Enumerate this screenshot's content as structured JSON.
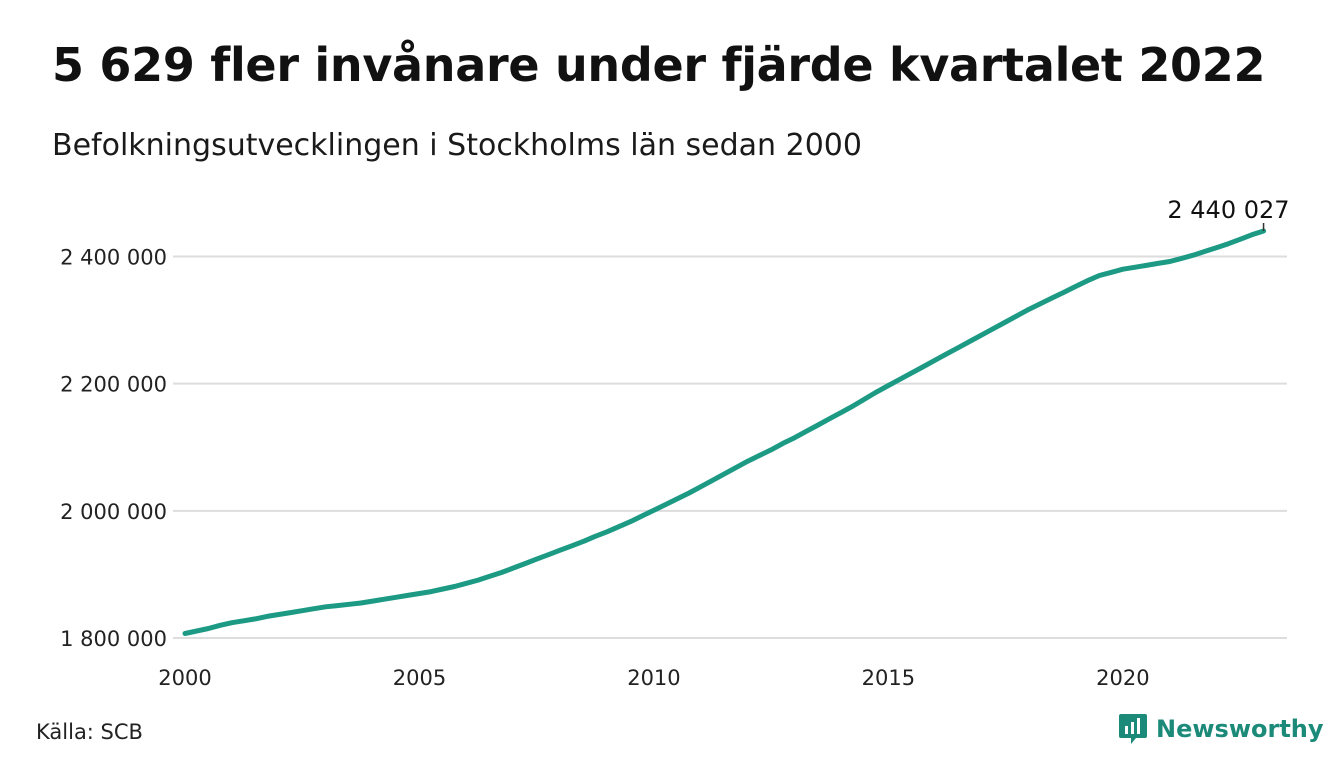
{
  "title": "5 629 fler invånare under fjärde kvartalet 2022",
  "subtitle": "Befolkningsutvecklingen i Stockholms län sedan 2000",
  "source": "Källa: SCB",
  "brand": {
    "name": "Newsworthy",
    "icon": "newsworthy-logo-icon"
  },
  "colors": {
    "line": "#1c9a84",
    "grid": "#dddddd",
    "brand": "#1c8a79"
  },
  "chart_data": {
    "type": "line",
    "title": "5 629 fler invånare under fjärde kvartalet 2022",
    "subtitle": "Befolkningsutvecklingen i Stockholms län sedan 2000",
    "xlabel": "",
    "ylabel": "",
    "xlim": [
      2000,
      2023.5
    ],
    "ylim": [
      1800000,
      2440027
    ],
    "grid": "horizontal",
    "legend": "none",
    "x_ticks": [
      2000,
      2005,
      2010,
      2015,
      2020
    ],
    "x_tick_labels": [
      "2000",
      "2005",
      "2010",
      "2015",
      "2020"
    ],
    "y_ticks": [
      1800000,
      2000000,
      2200000,
      2400000
    ],
    "y_tick_labels": [
      "1 800 000",
      "2 000 000",
      "2 200 000",
      "2 400 000"
    ],
    "end_label": "2 440 027",
    "series": [
      {
        "x": [
          2000.0,
          2000.25,
          2000.5,
          2000.75,
          2001.0,
          2001.25,
          2001.5,
          2001.75,
          2002.0,
          2002.25,
          2002.5,
          2002.75,
          2003.0,
          2003.25,
          2003.5,
          2003.75,
          2004.0,
          2004.25,
          2004.5,
          2004.75,
          2005.0,
          2005.25,
          2005.5,
          2005.75,
          2006.0,
          2006.25,
          2006.5,
          2006.75,
          2007.0,
          2007.25,
          2007.5,
          2007.75,
          2008.0,
          2008.25,
          2008.5,
          2008.75,
          2009.0,
          2009.25,
          2009.5,
          2009.75,
          2010.0,
          2010.25,
          2010.5,
          2010.75,
          2011.0,
          2011.25,
          2011.5,
          2011.75,
          2012.0,
          2012.25,
          2012.5,
          2012.75,
          2013.0,
          2013.25,
          2013.5,
          2013.75,
          2014.0,
          2014.25,
          2014.5,
          2014.75,
          2015.0,
          2015.25,
          2015.5,
          2015.75,
          2016.0,
          2016.25,
          2016.5,
          2016.75,
          2017.0,
          2017.25,
          2017.5,
          2017.75,
          2018.0,
          2018.25,
          2018.5,
          2018.75,
          2019.0,
          2019.25,
          2019.5,
          2019.75,
          2020.0,
          2020.25,
          2020.5,
          2020.75,
          2021.0,
          2021.25,
          2021.5,
          2021.75,
          2022.0,
          2022.25,
          2022.5,
          2022.75,
          2023.0
        ],
        "y": [
          1807000,
          1811000,
          1815000,
          1820000,
          1824000,
          1827000,
          1830000,
          1834000,
          1837000,
          1840000,
          1843000,
          1846000,
          1849000,
          1851000,
          1853000,
          1855000,
          1858000,
          1861000,
          1864000,
          1867000,
          1870000,
          1873000,
          1877000,
          1881000,
          1886000,
          1891000,
          1897000,
          1903000,
          1910000,
          1917000,
          1924000,
          1931000,
          1938000,
          1945000,
          1952000,
          1960000,
          1967000,
          1975000,
          1983000,
          1992000,
          2001000,
          2010000,
          2019000,
          2028000,
          2038000,
          2048000,
          2058000,
          2068000,
          2078000,
          2087000,
          2096000,
          2106000,
          2115000,
          2125000,
          2135000,
          2145000,
          2155000,
          2165000,
          2176000,
          2187000,
          2197000,
          2207000,
          2217000,
          2227000,
          2237000,
          2247000,
          2257000,
          2267000,
          2277000,
          2287000,
          2297000,
          2307000,
          2317000,
          2326000,
          2335000,
          2344000,
          2353000,
          2362000,
          2370000,
          2375000,
          2380000,
          2383000,
          2386000,
          2389000,
          2392000,
          2397000,
          2402000,
          2408000,
          2414000,
          2420000,
          2427000,
          2434000,
          2440027
        ]
      }
    ]
  }
}
